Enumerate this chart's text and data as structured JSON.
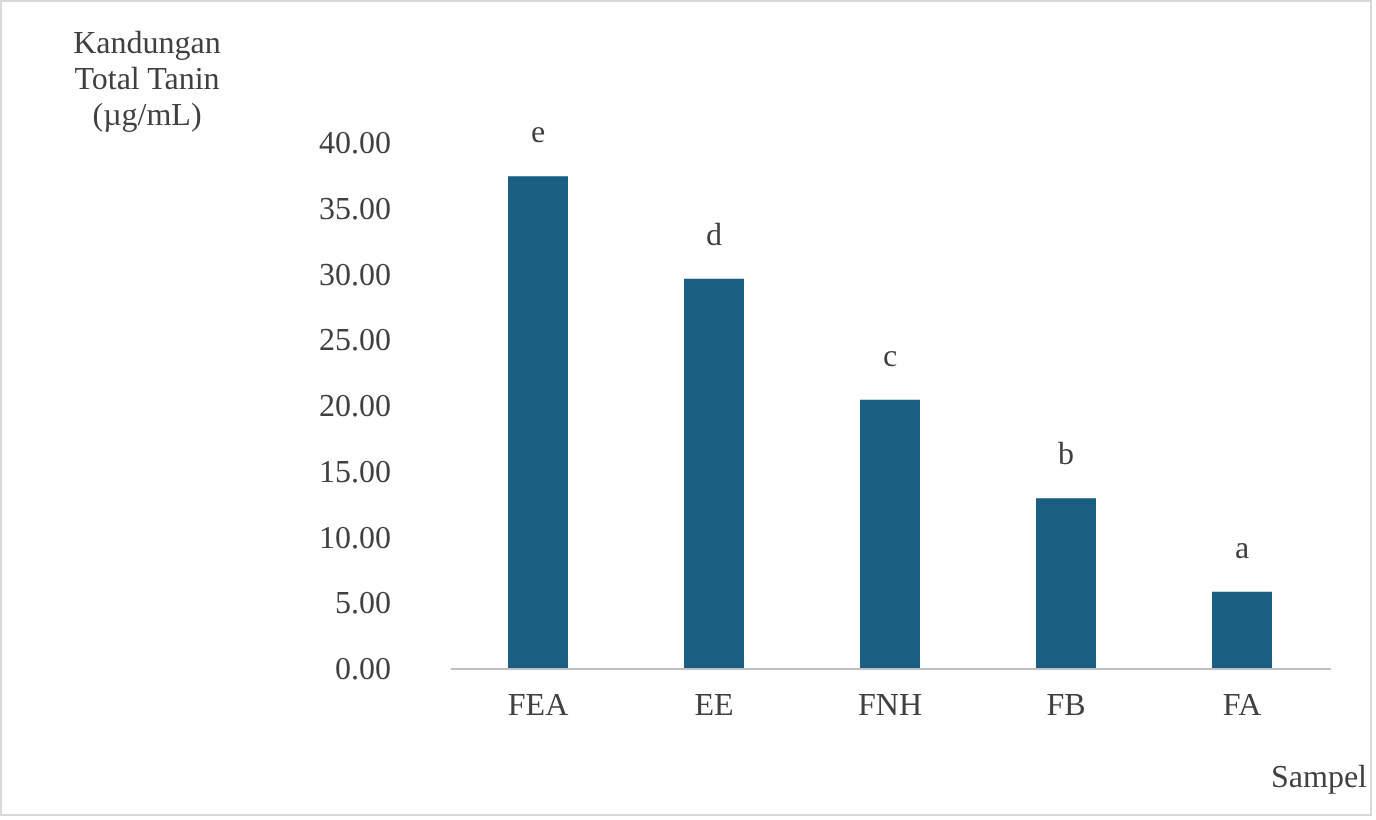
{
  "chart_data": {
    "type": "bar",
    "ylabel": "Kandungan Total Tanin (µg/mL)",
    "xlabel": "Sampel",
    "categories": [
      "FEA",
      "EE",
      "FNH",
      "FB",
      "FA"
    ],
    "values": [
      37.4,
      29.6,
      20.4,
      12.9,
      5.8
    ],
    "color": "#195f82",
    "ylim": [
      0,
      40
    ],
    "yticks": [
      {
        "value": 0,
        "label": "0.00"
      },
      {
        "value": 5,
        "label": "5.00"
      },
      {
        "value": 10,
        "label": "10.00"
      },
      {
        "value": 15,
        "label": "15.00"
      },
      {
        "value": 20,
        "label": "20.00"
      },
      {
        "value": 25,
        "label": "25.00"
      },
      {
        "value": 30,
        "label": "30.00"
      },
      {
        "value": 35,
        "label": "35.00"
      },
      {
        "value": 40,
        "label": "40.00"
      }
    ],
    "annotations": [
      {
        "text": "e",
        "x": "FEA",
        "y": 37.4
      },
      {
        "text": "d",
        "x": "EE",
        "y": 29.6
      },
      {
        "text": "c",
        "x": "FNH",
        "y": 20.4
      },
      {
        "text": "b",
        "x": "FB",
        "y": 12.9
      },
      {
        "text": "a",
        "x": "FA",
        "y": 5.8
      }
    ],
    "grid": false
  }
}
